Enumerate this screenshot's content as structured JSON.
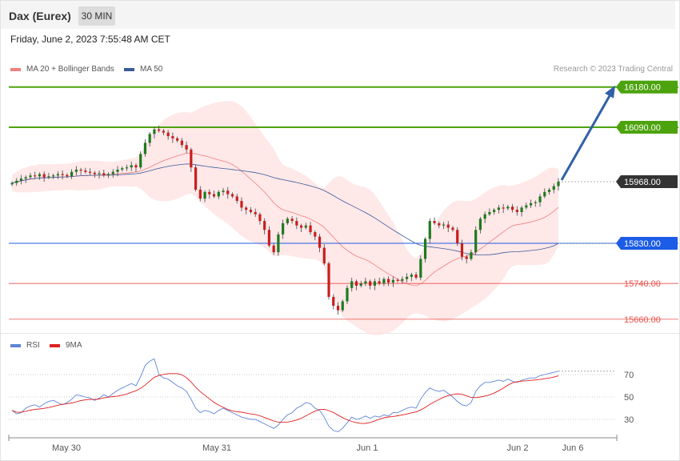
{
  "header": {
    "title": "Dax (Eurex)",
    "timeframe": "30 MIN"
  },
  "timestamp": "Friday, June 2, 2023 7:55:48 AM CET",
  "legend": {
    "ma20": "MA 20 + Bollinger Bands",
    "ma50": "MA 50",
    "credit": "Research © 2023 Trading Central",
    "rsi": "RSI",
    "rsi_ma": "9MA"
  },
  "colors": {
    "resistance": "#4ca30d",
    "support": "#e8504a",
    "pivot": "#1c5ce6",
    "last": "#333333",
    "ma20": "#f08080",
    "ma50": "#3c5a99",
    "bands": "#fde0e0",
    "rsi": "#5b83d8",
    "rsi_ma": "#e02020"
  },
  "chart_data": {
    "type": "candlestick",
    "ylim": [
      15640,
      16210
    ],
    "levels": [
      {
        "label": "16180.00",
        "value": 16180,
        "kind": "resistance"
      },
      {
        "label": "16090.00",
        "value": 16090,
        "kind": "resistance"
      },
      {
        "label": "15968.00",
        "value": 15968,
        "kind": "last"
      },
      {
        "label": "15830.00",
        "value": 15830,
        "kind": "pivot"
      },
      {
        "label": "15740.00",
        "value": 15740,
        "kind": "support"
      },
      {
        "label": "15660.00",
        "value": 15660,
        "kind": "support"
      }
    ],
    "x_ticks": [
      "May 30",
      "May 31",
      "Jun 1",
      "Jun 2",
      "Jun 6"
    ],
    "close_series": [
      15965,
      15970,
      15975,
      15978,
      15982,
      15980,
      15985,
      15978,
      15980,
      15982,
      15985,
      15983,
      15980,
      15990,
      15995,
      15993,
      15990,
      15988,
      15985,
      15987,
      15982,
      15985,
      15990,
      15995,
      15998,
      16000,
      16005,
      16000,
      16030,
      16055,
      16075,
      16085,
      16082,
      16078,
      16070,
      16065,
      16060,
      16050,
      16040,
      16000,
      15950,
      15930,
      15945,
      15940,
      15935,
      15945,
      15948,
      15940,
      15935,
      15925,
      15910,
      15905,
      15900,
      15895,
      15880,
      15860,
      15825,
      15810,
      15850,
      15875,
      15885,
      15880,
      15870,
      15865,
      15870,
      15855,
      15845,
      15820,
      15785,
      15710,
      15690,
      15680,
      15700,
      15730,
      15745,
      15735,
      15740,
      15745,
      15735,
      15745,
      15740,
      15750,
      15742,
      15748,
      15746,
      15750,
      15755,
      15760,
      15753,
      15795,
      15840,
      15880,
      15875,
      15870,
      15872,
      15865,
      15860,
      15830,
      15800,
      15795,
      15810,
      15860,
      15885,
      15895,
      15900,
      15905,
      15910,
      15908,
      15912,
      15905,
      15900,
      15910,
      15915,
      15920,
      15922,
      15935,
      15945,
      15950,
      15958,
      15968
    ],
    "rsi": {
      "ylim": [
        15,
        90
      ],
      "ticks": [
        70,
        50,
        30
      ],
      "values": [
        38,
        35,
        36,
        40,
        42,
        43,
        41,
        44,
        46,
        47,
        45,
        43,
        45,
        48,
        52,
        51,
        50,
        49,
        47,
        49,
        52,
        50,
        53,
        56,
        58,
        60,
        62,
        60,
        68,
        78,
        82,
        84,
        70,
        67,
        66,
        63,
        60,
        58,
        55,
        48,
        40,
        36,
        38,
        37,
        35,
        38,
        40,
        38,
        36,
        34,
        32,
        31,
        30,
        30,
        28,
        26,
        24,
        22,
        25,
        30,
        34,
        36,
        40,
        42,
        45,
        44,
        40,
        38,
        32,
        24,
        20,
        19,
        22,
        27,
        32,
        30,
        31,
        33,
        31,
        33,
        32,
        34,
        33,
        36,
        36,
        38,
        40,
        41,
        40,
        48,
        54,
        58,
        56,
        55,
        56,
        53,
        50,
        46,
        43,
        42,
        45,
        55,
        60,
        63,
        63,
        64,
        65,
        64,
        66,
        64,
        63,
        65,
        66,
        67,
        67,
        69,
        70,
        71,
        72,
        73
      ]
    }
  }
}
